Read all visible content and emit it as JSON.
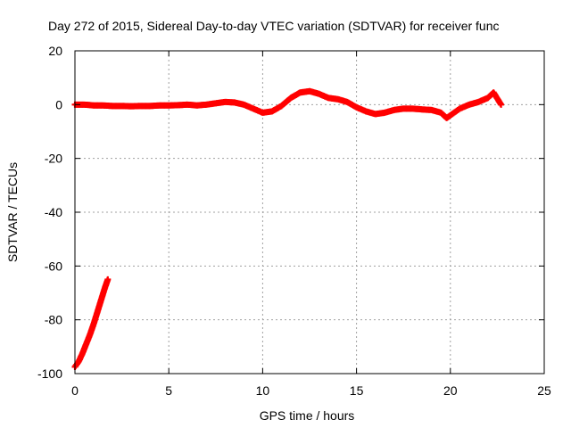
{
  "chart_data": {
    "type": "scatter",
    "title": "Day 272 of 2015, Sidereal Day-to-day VTEC variation (SDTVAR) for receiver func",
    "xlabel": "GPS time / hours",
    "ylabel": "SDTVAR / TECUs",
    "xlim": [
      0,
      25
    ],
    "ylim": [
      -100,
      20
    ],
    "xticks": [
      "0",
      "5",
      "10",
      "15",
      "20",
      "25"
    ],
    "yticks": [
      "-100",
      "-80",
      "-60",
      "-40",
      "-20",
      "0",
      "20"
    ],
    "grid": true,
    "marker_color": "#ff0000",
    "series": [
      {
        "values": [
          [
            0.0,
            -97.5
          ],
          [
            0.2,
            -95.5
          ],
          [
            0.4,
            -92.5
          ],
          [
            0.6,
            -89.0
          ],
          [
            0.8,
            -85.5
          ],
          [
            1.0,
            -81.5
          ],
          [
            1.2,
            -77.0
          ],
          [
            1.4,
            -72.5
          ],
          [
            1.6,
            -68.0
          ],
          [
            1.75,
            -65.0
          ]
        ]
      },
      {
        "values": [
          [
            0.0,
            0.0
          ],
          [
            0.5,
            0.0
          ],
          [
            1.0,
            -0.3
          ],
          [
            1.5,
            -0.3
          ],
          [
            2.0,
            -0.5
          ],
          [
            2.5,
            -0.5
          ],
          [
            3.0,
            -0.6
          ],
          [
            3.5,
            -0.5
          ],
          [
            4.0,
            -0.5
          ],
          [
            4.5,
            -0.3
          ],
          [
            5.0,
            -0.3
          ],
          [
            5.5,
            -0.2
          ],
          [
            6.0,
            0.0
          ],
          [
            6.5,
            -0.3
          ],
          [
            7.0,
            0.0
          ],
          [
            7.5,
            0.5
          ],
          [
            8.0,
            1.0
          ],
          [
            8.5,
            0.8
          ],
          [
            9.0,
            0.0
          ],
          [
            9.5,
            -1.5
          ],
          [
            10.0,
            -3.0
          ],
          [
            10.5,
            -2.5
          ],
          [
            11.0,
            -0.5
          ],
          [
            11.5,
            2.5
          ],
          [
            12.0,
            4.5
          ],
          [
            12.5,
            5.0
          ],
          [
            13.0,
            4.0
          ],
          [
            13.5,
            2.5
          ],
          [
            14.0,
            2.0
          ],
          [
            14.5,
            1.0
          ],
          [
            15.0,
            -1.0
          ],
          [
            15.5,
            -2.5
          ],
          [
            16.0,
            -3.5
          ],
          [
            16.5,
            -3.0
          ],
          [
            17.0,
            -2.0
          ],
          [
            17.5,
            -1.5
          ],
          [
            18.0,
            -1.5
          ],
          [
            18.5,
            -1.8
          ],
          [
            19.0,
            -2.0
          ],
          [
            19.5,
            -3.0
          ],
          [
            19.8,
            -5.0
          ],
          [
            20.0,
            -4.0
          ],
          [
            20.5,
            -1.5
          ],
          [
            21.0,
            0.0
          ],
          [
            21.5,
            1.0
          ],
          [
            22.0,
            2.5
          ],
          [
            22.3,
            4.5
          ],
          [
            22.7,
            0.0
          ]
        ]
      }
    ]
  }
}
